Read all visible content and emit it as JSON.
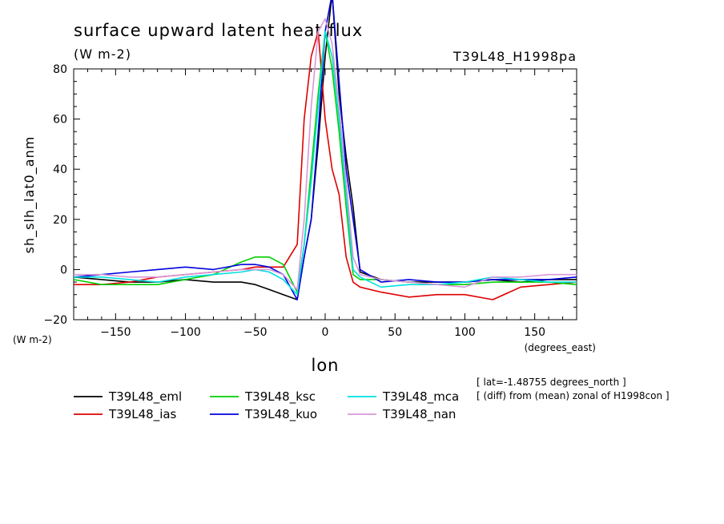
{
  "chart_data": {
    "type": "line",
    "title": "surface upward latent heat flux",
    "units": "(W m-2)",
    "run_label": "T39L48_H1998pa",
    "ylabel": "sh_slh_lat0_anm",
    "ylabel_units": "(W m-2)",
    "xlabel": "lon",
    "xlabel_units": "(degrees_east)",
    "xlim": [
      -180,
      180
    ],
    "ylim": [
      -20,
      80
    ],
    "x_ticks": [
      -150,
      -100,
      -50,
      0,
      50,
      100,
      150
    ],
    "y_ticks": [
      -20,
      0,
      20,
      40,
      60,
      80
    ],
    "annotations": [
      "[ lat=-1.48755 degrees_north ]",
      "[ (diff) from (mean) zonal of H1998con ]"
    ],
    "grid": false,
    "legend_placement": "below",
    "x": [
      -180,
      -160,
      -140,
      -120,
      -100,
      -80,
      -60,
      -50,
      -40,
      -30,
      -20,
      -15,
      -10,
      -5,
      0,
      5,
      10,
      15,
      20,
      25,
      40,
      60,
      80,
      100,
      120,
      140,
      160,
      180
    ],
    "series": [
      {
        "name": "T39L48_eml",
        "color": "#000000",
        "values": [
          -3,
          -4,
          -5,
          -5,
          -4,
          -5,
          -5,
          -6,
          -8,
          -10,
          -12,
          5,
          20,
          50,
          85,
          110,
          70,
          45,
          25,
          -1,
          -4,
          -5,
          -5,
          -5,
          -4,
          -5,
          -4,
          -4
        ]
      },
      {
        "name": "T39L48_ias",
        "color": "#e00000",
        "values": [
          -6,
          -6,
          -5,
          -3,
          -2,
          -1,
          0,
          1,
          1,
          1,
          10,
          60,
          85,
          95,
          60,
          40,
          30,
          5,
          -5,
          -7,
          -9,
          -11,
          -10,
          -10,
          -12,
          -7,
          -6,
          -5
        ]
      },
      {
        "name": "T39L48_ksc",
        "color": "#00d000",
        "values": [
          -4,
          -6,
          -6,
          -6,
          -4,
          -2,
          3,
          5,
          5,
          2,
          -9,
          10,
          40,
          70,
          95,
          80,
          55,
          25,
          -2,
          -4,
          -4,
          -5,
          -6,
          -6,
          -5,
          -5,
          -5,
          -6
        ]
      },
      {
        "name": "T39L48_kuo",
        "color": "#0000e0",
        "values": [
          -3,
          -2,
          -1,
          0,
          1,
          0,
          2,
          2,
          1,
          -2,
          -12,
          5,
          20,
          55,
          95,
          110,
          75,
          40,
          20,
          0,
          -5,
          -4,
          -5,
          -5,
          -4,
          -4,
          -4,
          -3
        ]
      },
      {
        "name": "T39L48_mca",
        "color": "#00e0e0",
        "values": [
          -3,
          -3,
          -4,
          -5,
          -3,
          -2,
          -1,
          0,
          -1,
          -4,
          -10,
          10,
          35,
          65,
          95,
          85,
          60,
          30,
          0,
          -3,
          -7,
          -6,
          -6,
          -5,
          -3,
          -4,
          -5,
          -5
        ]
      },
      {
        "name": "T39L48_nan",
        "color": "#d898d8",
        "values": [
          -2,
          -2,
          -3,
          -3,
          -2,
          -1,
          0,
          0,
          0,
          -2,
          -8,
          20,
          65,
          95,
          100,
          90,
          65,
          35,
          5,
          -2,
          -4,
          -5,
          -6,
          -7,
          -3,
          -3,
          -2,
          -2
        ]
      }
    ]
  }
}
